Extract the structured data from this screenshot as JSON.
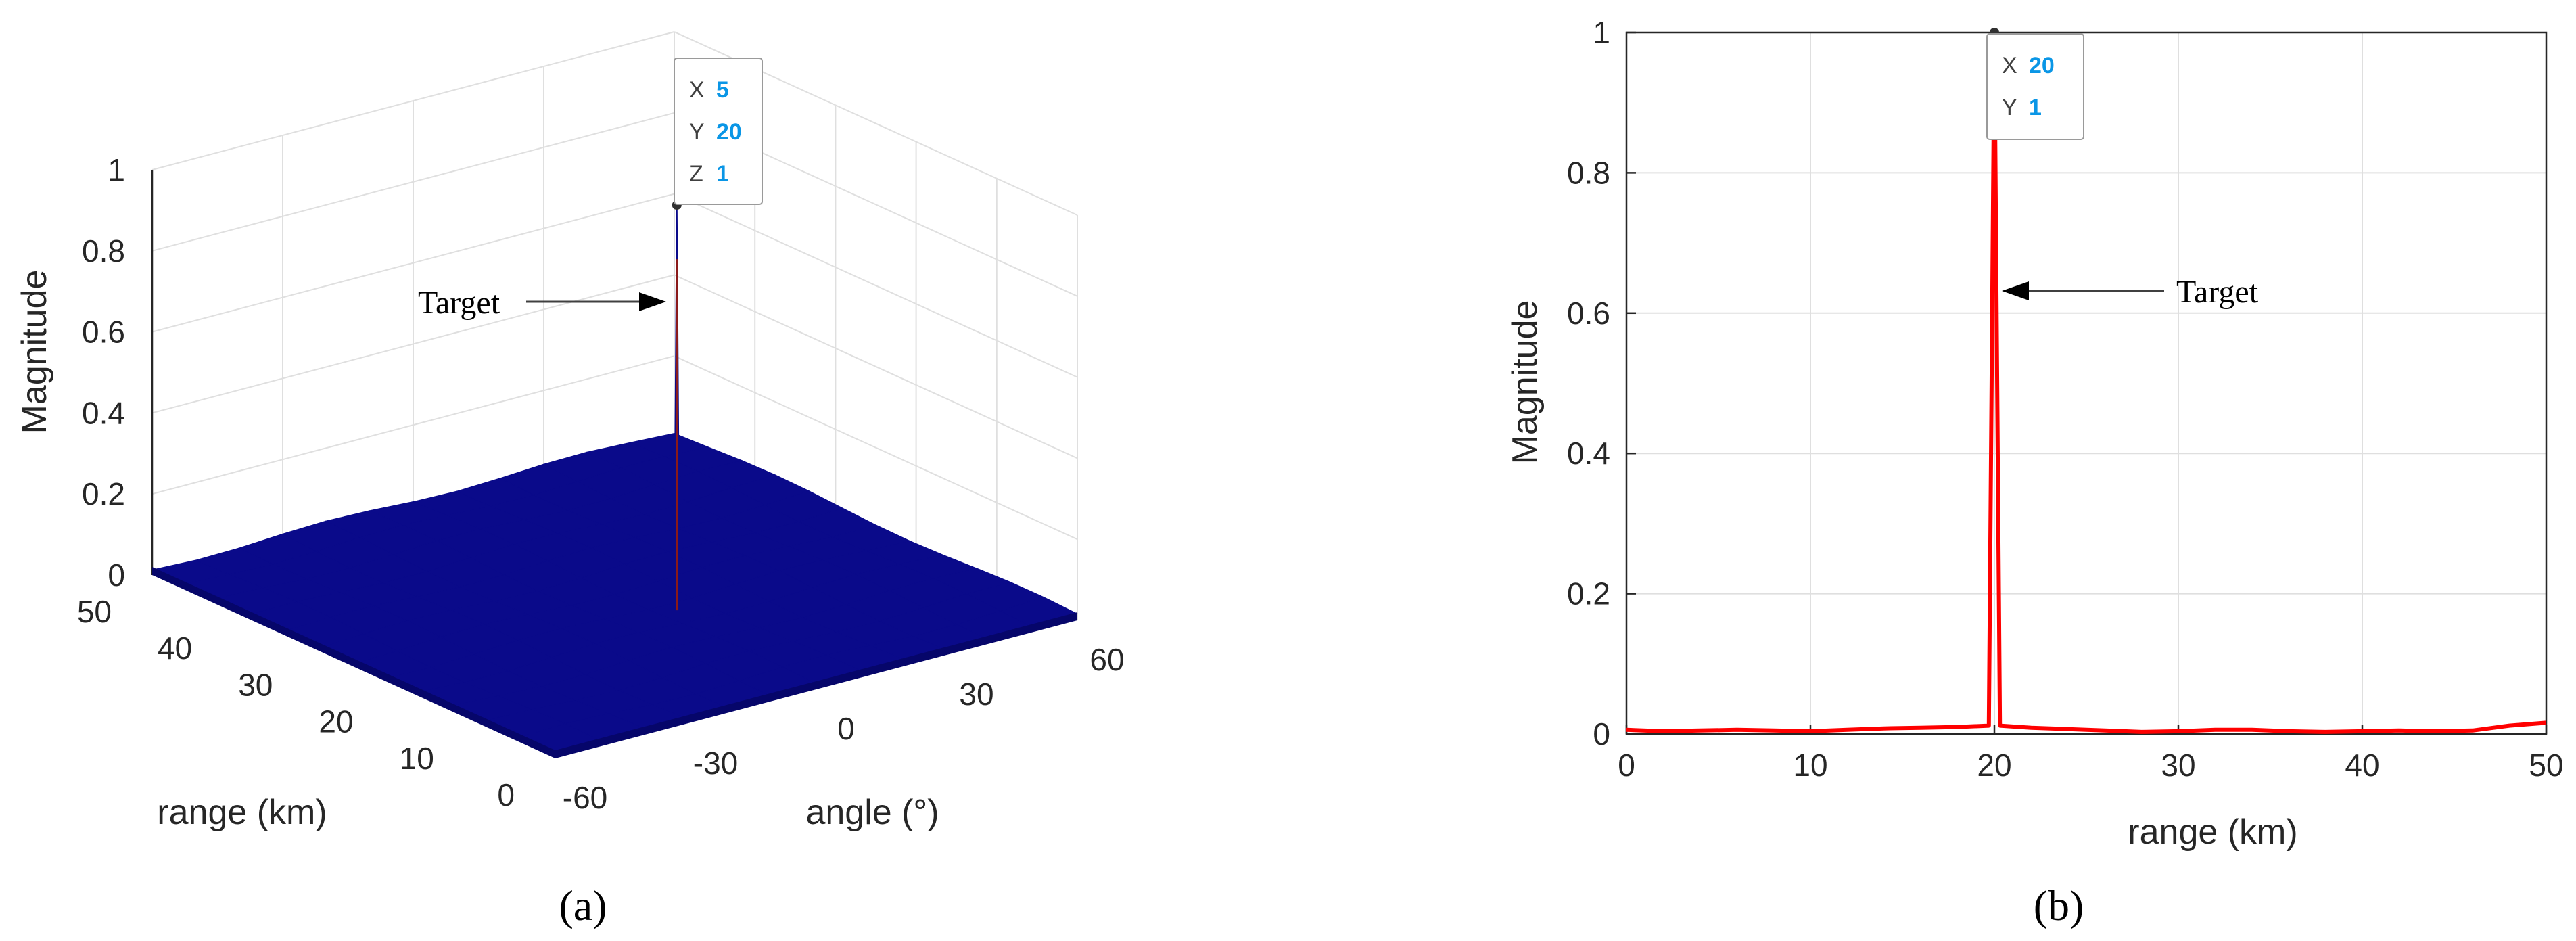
{
  "chart_data": [
    {
      "type": "surface",
      "panel_label": "(a)",
      "xlabel": "angle (°)",
      "ylabel": "range (km)",
      "zlabel": "Magnitude",
      "x_ticks": [
        "-60",
        "-30",
        "0",
        "30",
        "60"
      ],
      "y_ticks": [
        "0",
        "10",
        "20",
        "30",
        "40",
        "50"
      ],
      "z_ticks": [
        "0",
        "0.2",
        "0.4",
        "0.6",
        "0.8",
        "1"
      ],
      "xlim": [
        -60,
        60
      ],
      "ylim": [
        0,
        50
      ],
      "zlim": [
        0,
        1
      ],
      "grid": true,
      "surface_color": "#0a0a8a",
      "peak": {
        "x": 5,
        "y": 20,
        "z": 1
      },
      "background_level": 0.02,
      "datatip": [
        {
          "key": "X",
          "value": "5"
        },
        {
          "key": "Y",
          "value": "20"
        },
        {
          "key": "Z",
          "value": "1"
        }
      ],
      "annotation": "Target"
    },
    {
      "type": "line",
      "panel_label": "(b)",
      "xlabel": "range (km)",
      "ylabel": "Magnitude",
      "x_ticks": [
        "0",
        "10",
        "20",
        "30",
        "40",
        "50"
      ],
      "y_ticks": [
        "0",
        "0.2",
        "0.4",
        "0.6",
        "0.8",
        "1"
      ],
      "xlim": [
        0,
        50
      ],
      "ylim": [
        0,
        1
      ],
      "grid": true,
      "series": [
        {
          "color": "#ff0000",
          "x": [
            0,
            2,
            4,
            6,
            8,
            10,
            12,
            14,
            16,
            18,
            19.7,
            19.85,
            20,
            20.15,
            20.3,
            22,
            24,
            26,
            28,
            30,
            32,
            34,
            36,
            38,
            40,
            42,
            44,
            46,
            48,
            50
          ],
          "y": [
            0.006,
            0.004,
            0.005,
            0.006,
            0.005,
            0.004,
            0.006,
            0.008,
            0.009,
            0.01,
            0.012,
            0.5,
            1.0,
            0.5,
            0.012,
            0.009,
            0.007,
            0.005,
            0.003,
            0.004,
            0.006,
            0.006,
            0.004,
            0.003,
            0.004,
            0.005,
            0.004,
            0.005,
            0.012,
            0.016
          ]
        }
      ],
      "datatip": [
        {
          "key": "X",
          "value": "20"
        },
        {
          "key": "Y",
          "value": "1"
        }
      ],
      "annotation": "Target"
    }
  ]
}
